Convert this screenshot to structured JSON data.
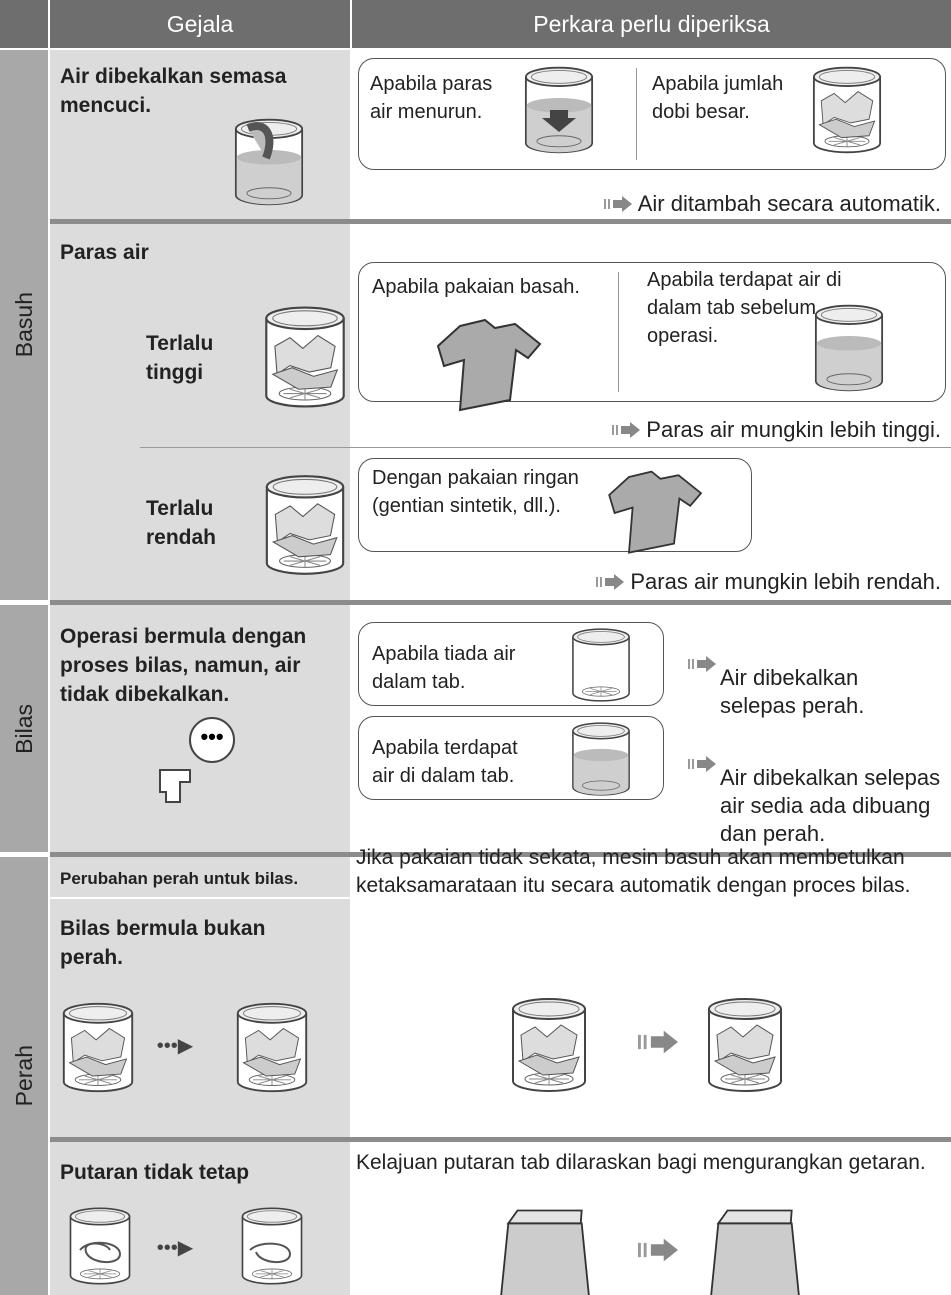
{
  "header": {
    "symptom_heading": "Gejala",
    "check_heading": "Perkara perlu diperiksa"
  },
  "basuh": {
    "label": "Basuh",
    "supply": {
      "symptom": "Air dibekalkan semasa mencuci.",
      "case_1": "Apabila paras air menurun.",
      "case_2": "Apabila jumlah dobi besar.",
      "result": "Air ditambah secara automatik."
    },
    "level": {
      "symptom": "Paras air",
      "high": {
        "label": "Terlalu tinggi",
        "case_1": "Apabila pakaian basah.",
        "case_2": "Apabila terdapat air di dalam tab sebelum operasi.",
        "result": "Paras air mungkin lebih tinggi."
      },
      "low": {
        "label": "Terlalu rendah",
        "case_1": "Dengan pakaian ringan (gentian sintetik, dll.).",
        "result": "Paras air mungkin lebih rendah."
      }
    }
  },
  "bilas": {
    "label": "Bilas",
    "symptom": "Operasi bermula dengan proses bilas, namun, air tidak dibekalkan.",
    "case_1": "Apabila tiada air dalam tab.",
    "result_1": "Air dibekalkan selepas perah.",
    "case_2": "Apabila terdapat air di dalam tab.",
    "result_2": "Air dibekalkan selepas air sedia ada dibuang dan perah."
  },
  "perah": {
    "label": "Perah",
    "change_note": "Perubahan perah untuk bilas.",
    "rinse": {
      "symptom": "Bilas bermula bukan perah.",
      "explanation": "Jika pakaian tidak sekata, mesin basuh akan membetulkan ketaksamarataan itu secara automatik dengan proces bilas."
    },
    "spin": {
      "symptom": "Putaran tidak tetap",
      "explanation": "Kelajuan putaran tab dilaraskan bagi mengurangkan getaran."
    }
  }
}
